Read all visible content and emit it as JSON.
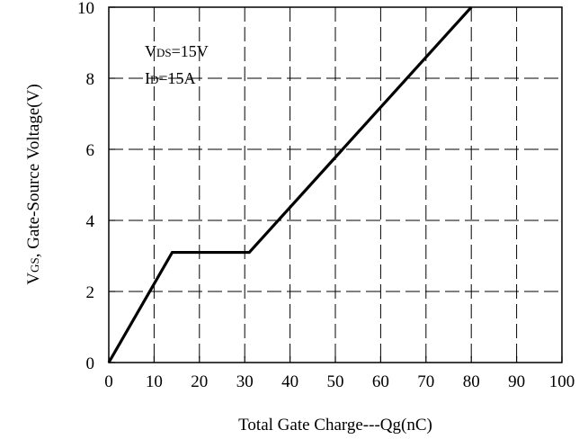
{
  "chart_data": {
    "type": "line",
    "xlabel": "Total Gate Charge---Qg(nC)",
    "ylabel": {
      "main": "V",
      "subscript": "GS",
      "rest": ", Gate-Source Voltage(V)"
    },
    "xlim": [
      0,
      100
    ],
    "ylim": [
      0,
      10
    ],
    "x_ticks": [
      0,
      10,
      20,
      30,
      40,
      50,
      60,
      70,
      80,
      90,
      100
    ],
    "y_ticks": [
      0,
      2,
      4,
      6,
      8,
      10
    ],
    "grid": true,
    "grid_style": "dashed",
    "annotations": [
      {
        "main": "V",
        "subscript": "DS",
        "rest": "=15V"
      },
      {
        "main": "I",
        "subscript": "D",
        "rest": "=15A"
      }
    ],
    "series": [
      {
        "x": [
          0,
          14,
          31,
          80
        ],
        "y": [
          0,
          3.1,
          3.1,
          10
        ]
      }
    ]
  },
  "colors": {
    "line": "#000000",
    "grid": "#000000",
    "axis": "#000000"
  }
}
